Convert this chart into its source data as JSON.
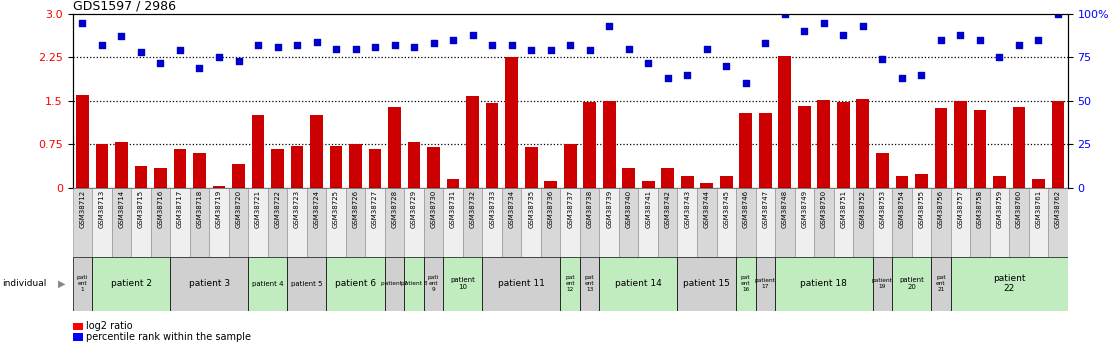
{
  "title": "GDS1597 / 2986",
  "samples": [
    "GSM38712",
    "GSM38713",
    "GSM38714",
    "GSM38715",
    "GSM38716",
    "GSM38717",
    "GSM38718",
    "GSM38719",
    "GSM38720",
    "GSM38721",
    "GSM38722",
    "GSM38723",
    "GSM38724",
    "GSM38725",
    "GSM38726",
    "GSM38727",
    "GSM38728",
    "GSM38729",
    "GSM38730",
    "GSM38731",
    "GSM38732",
    "GSM38733",
    "GSM38734",
    "GSM38735",
    "GSM38736",
    "GSM38737",
    "GSM38738",
    "GSM38739",
    "GSM38740",
    "GSM38741",
    "GSM38742",
    "GSM38743",
    "GSM38744",
    "GSM38745",
    "GSM38746",
    "GSM38747",
    "GSM38748",
    "GSM38749",
    "GSM38750",
    "GSM38751",
    "GSM38752",
    "GSM38753",
    "GSM38754",
    "GSM38755",
    "GSM38756",
    "GSM38757",
    "GSM38758",
    "GSM38759",
    "GSM38760",
    "GSM38761",
    "GSM38762"
  ],
  "log2_ratio": [
    1.6,
    0.75,
    0.8,
    0.38,
    0.35,
    0.68,
    0.6,
    0.04,
    0.42,
    1.25,
    0.68,
    0.72,
    1.25,
    0.72,
    0.75,
    0.68,
    1.4,
    0.8,
    0.7,
    0.15,
    1.58,
    1.47,
    2.25,
    0.7,
    0.12,
    0.75,
    1.48,
    1.5,
    0.35,
    0.12,
    0.35,
    0.2,
    0.08,
    0.2,
    1.3,
    1.3,
    2.28,
    1.42,
    1.52,
    1.48,
    1.53,
    0.6,
    0.2,
    0.25,
    1.38,
    1.5,
    1.35,
    0.2,
    1.4,
    0.15,
    1.5
  ],
  "percentile_rank": [
    95,
    82,
    87,
    78,
    72,
    79,
    69,
    75,
    73,
    82,
    81,
    82,
    84,
    80,
    80,
    81,
    82,
    81,
    83,
    85,
    88,
    82,
    82,
    79,
    79,
    82,
    79,
    93,
    80,
    72,
    63,
    65,
    80,
    70,
    60,
    83,
    100,
    90,
    95,
    88,
    93,
    74,
    63,
    65,
    85,
    88,
    85,
    75,
    82,
    85,
    100
  ],
  "patients": [
    {
      "label": "pati\nent\n1",
      "start": 0,
      "end": 1,
      "color": "#d0d0d0"
    },
    {
      "label": "patient 2",
      "start": 1,
      "end": 5,
      "color": "#c0ecc0"
    },
    {
      "label": "patient 3",
      "start": 5,
      "end": 9,
      "color": "#d0d0d0"
    },
    {
      "label": "patient 4",
      "start": 9,
      "end": 11,
      "color": "#c0ecc0"
    },
    {
      "label": "patient 5",
      "start": 11,
      "end": 13,
      "color": "#d0d0d0"
    },
    {
      "label": "patient 6",
      "start": 13,
      "end": 16,
      "color": "#c0ecc0"
    },
    {
      "label": "patient 7",
      "start": 16,
      "end": 17,
      "color": "#d0d0d0"
    },
    {
      "label": "patient 8",
      "start": 17,
      "end": 18,
      "color": "#c0ecc0"
    },
    {
      "label": "pati\nent\n9",
      "start": 18,
      "end": 19,
      "color": "#d0d0d0"
    },
    {
      "label": "patient\n10",
      "start": 19,
      "end": 21,
      "color": "#c0ecc0"
    },
    {
      "label": "patient 11",
      "start": 21,
      "end": 25,
      "color": "#d0d0d0"
    },
    {
      "label": "pat\nent\n12",
      "start": 25,
      "end": 26,
      "color": "#c0ecc0"
    },
    {
      "label": "pat\nent\n13",
      "start": 26,
      "end": 27,
      "color": "#d0d0d0"
    },
    {
      "label": "patient 14",
      "start": 27,
      "end": 31,
      "color": "#c0ecc0"
    },
    {
      "label": "patient 15",
      "start": 31,
      "end": 34,
      "color": "#d0d0d0"
    },
    {
      "label": "pat\nent\n16",
      "start": 34,
      "end": 35,
      "color": "#c0ecc0"
    },
    {
      "label": "patient\n17",
      "start": 35,
      "end": 36,
      "color": "#d0d0d0"
    },
    {
      "label": "patient 18",
      "start": 36,
      "end": 41,
      "color": "#c0ecc0"
    },
    {
      "label": "patient\n19",
      "start": 41,
      "end": 42,
      "color": "#d0d0d0"
    },
    {
      "label": "patient\n20",
      "start": 42,
      "end": 44,
      "color": "#c0ecc0"
    },
    {
      "label": "pat\nent\n21",
      "start": 44,
      "end": 45,
      "color": "#d0d0d0"
    },
    {
      "label": "patient\n22",
      "start": 45,
      "end": 51,
      "color": "#c0ecc0"
    }
  ],
  "left_yticks": [
    0,
    0.75,
    1.5,
    2.25,
    3.0
  ],
  "right_yticks": [
    0,
    25,
    50,
    75,
    100
  ],
  "right_yticklabels": [
    "0",
    "25",
    "50",
    "75",
    "100%"
  ],
  "hlines": [
    0.75,
    1.5,
    2.25
  ],
  "bar_color": "#cc0000",
  "dot_color": "#0000cc",
  "sample_bg_even": "#d8d8d8",
  "sample_bg_odd": "#efefef",
  "chart_bg": "#ffffff"
}
